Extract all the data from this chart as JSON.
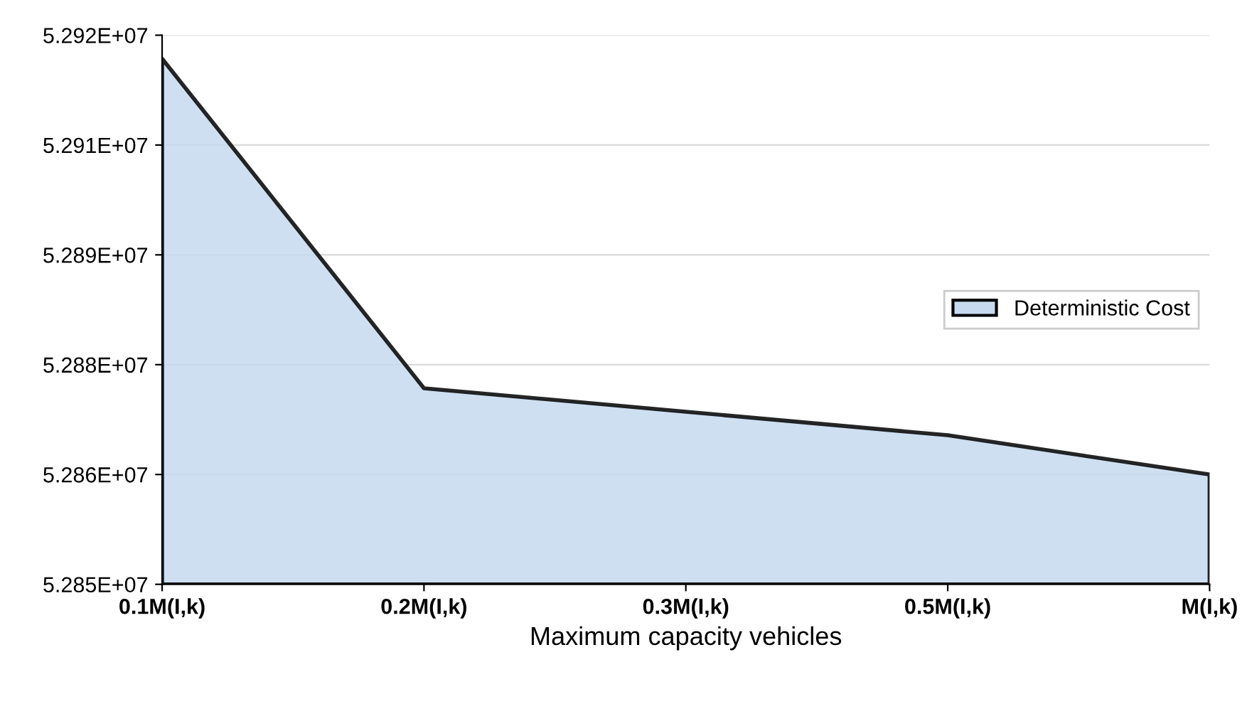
{
  "chart_data": {
    "type": "area",
    "xlabel": "Maximum capacity vehicles",
    "categories": [
      "0.1M(I,k)",
      "0.2M(I,k)",
      "0.3M(I,k)",
      "0.5M(I,k)",
      "M(I,k)"
    ],
    "series": [
      {
        "name": "Deterministic Cost",
        "color": "#c6d9ee",
        "values": [
          52917000,
          52875000,
          52872000,
          52869000,
          52864000
        ]
      }
    ],
    "ylim": [
      52850000,
      52920000
    ],
    "yticks": [
      {
        "value": 52850000,
        "label": "5.285E+07"
      },
      {
        "value": 52864000,
        "label": "5.286E+07"
      },
      {
        "value": 52878000,
        "label": "5.288E+07"
      },
      {
        "value": 52892000,
        "label": "5.289E+07"
      },
      {
        "value": 52906000,
        "label": "5.291E+07"
      },
      {
        "value": 52920000,
        "label": "5.292E+07"
      }
    ],
    "grid": "y",
    "legend": "right"
  }
}
